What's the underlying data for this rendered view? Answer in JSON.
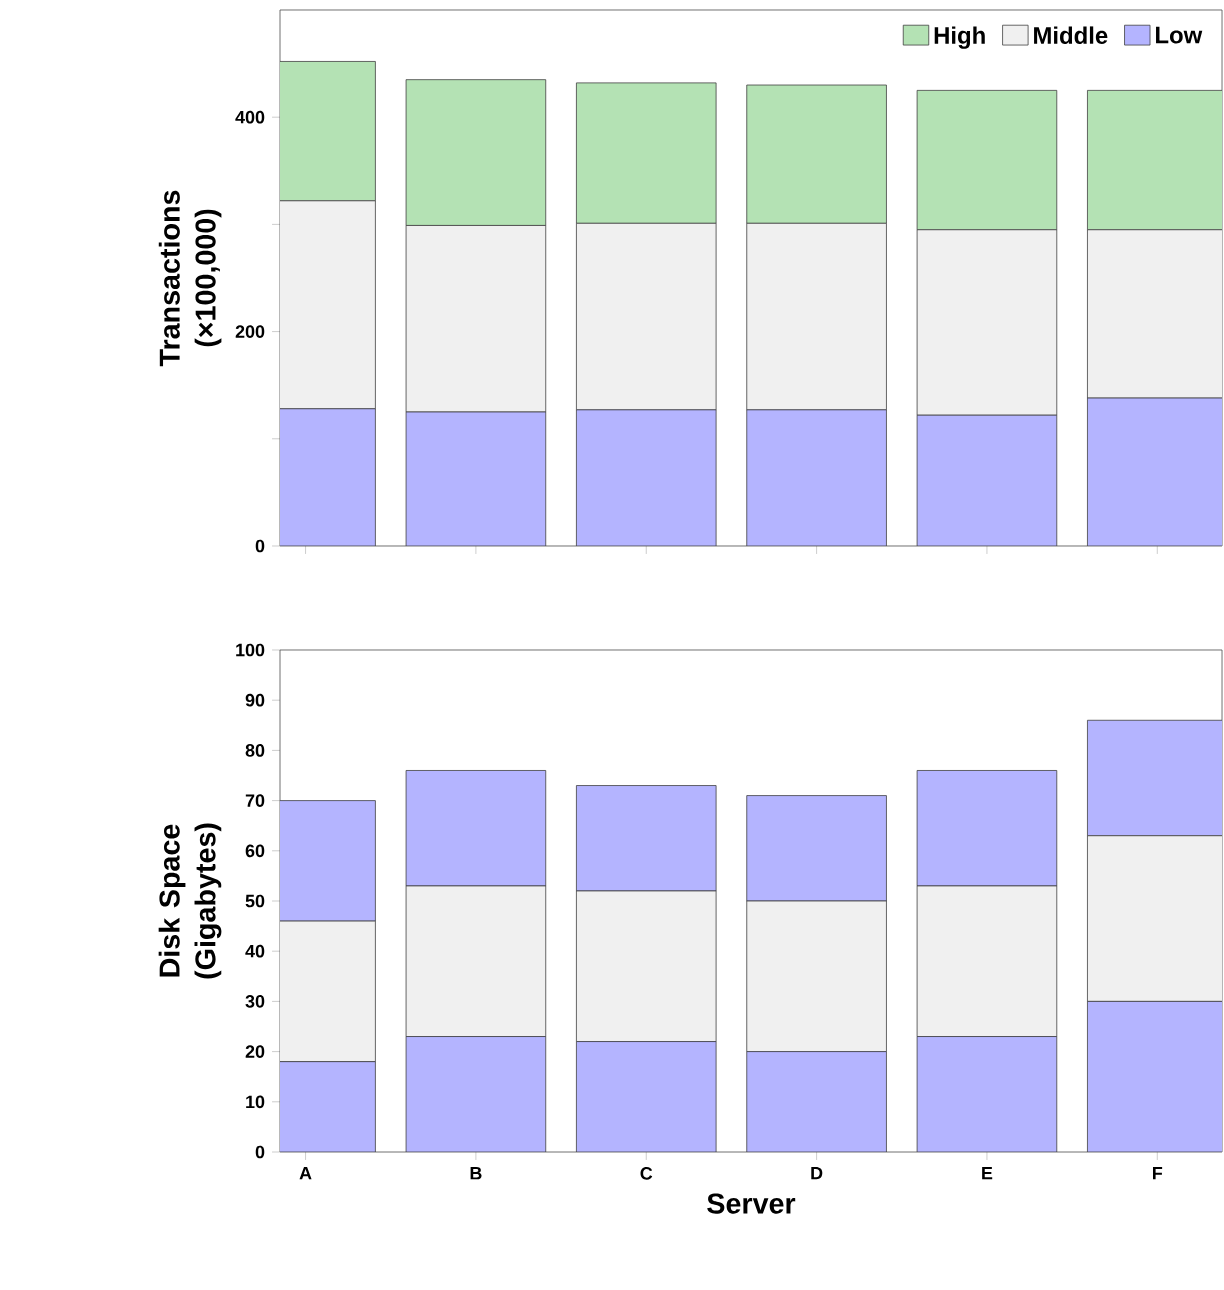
{
  "chart_data": [
    {
      "type": "bar",
      "stacked": true,
      "ylabel": "Transactions (×100,000)",
      "categories": [
        null,
        null,
        null,
        null,
        null,
        null
      ],
      "tick_labels": "y",
      "legend": "top right",
      "ylim": [
        0,
        500
      ],
      "yticks": [
        0,
        {
          "value": 100,
          "label": null
        },
        200,
        {
          "value": 300,
          "label": null
        },
        400
      ],
      "series": [
        {
          "name": "Low",
          "color": "#b4b4ff",
          "values": [
            128,
            125,
            127,
            127,
            122,
            138
          ]
        },
        {
          "name": "Middle",
          "color": "#f0f0f0",
          "values": [
            194,
            174,
            174,
            174,
            173,
            157
          ]
        },
        {
          "name": "High",
          "color": "#b4e2b4",
          "values": [
            130,
            136,
            131,
            129,
            130,
            130
          ]
        }
      ]
    },
    {
      "type": "bar",
      "stacked": true,
      "ylabel": "Disk Space (Gigabytes)",
      "xlabel": "Server",
      "categories": [
        "A",
        "B",
        "C",
        "D",
        "E",
        "F"
      ],
      "ylim": [
        0,
        100
      ],
      "yticks": [
        0,
        10,
        20,
        30,
        40,
        50,
        60,
        70,
        80,
        90,
        100
      ],
      "series": [
        {
          "color": "#b4b4ff",
          "values": [
            18,
            23,
            22,
            20,
            23,
            30
          ]
        },
        {
          "color": "#f0f0f0",
          "values": [
            28,
            30,
            30,
            30,
            30,
            33
          ]
        },
        {
          "color": "#b4b4ff",
          "values": [
            24,
            23,
            21,
            21,
            23,
            23
          ]
        }
      ]
    }
  ]
}
